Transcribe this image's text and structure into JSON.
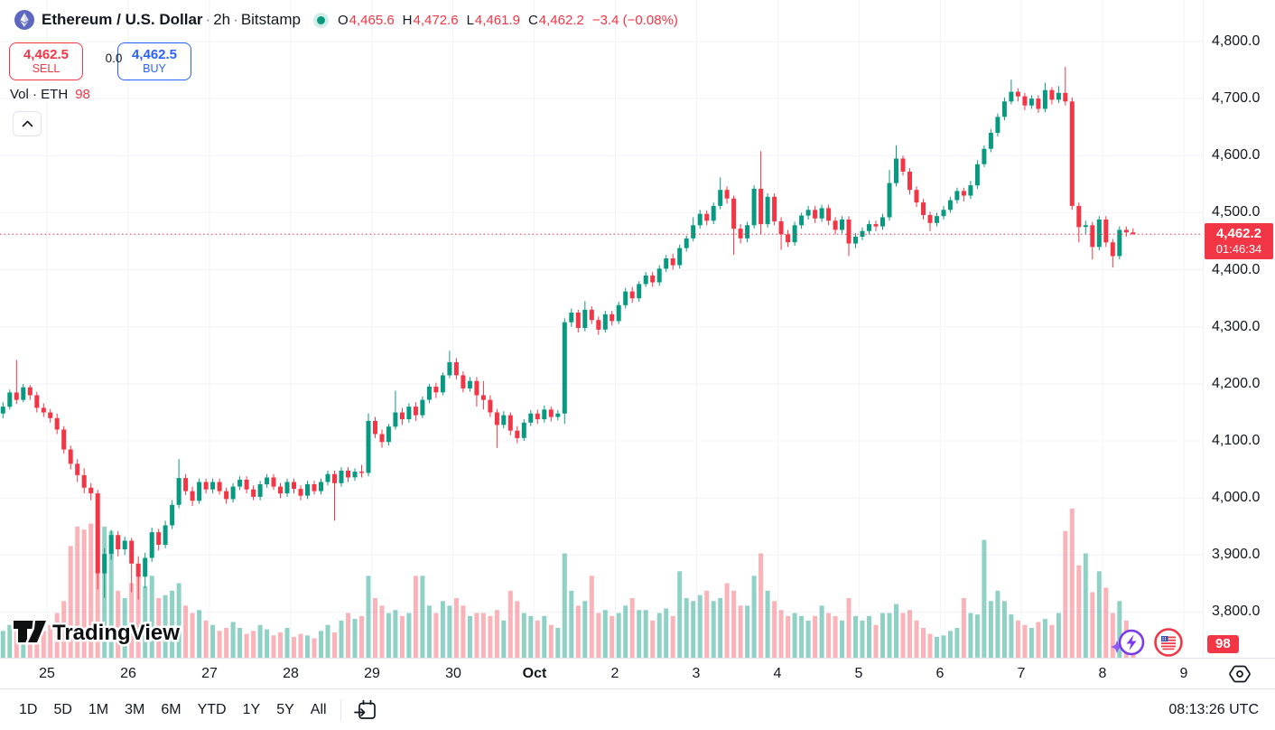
{
  "header": {
    "symbol_title": "Ethereum / U.S. Dollar",
    "separator": "·",
    "interval": "2h",
    "exchange": "Bitstamp",
    "ohlc": {
      "o_label": "O",
      "o": "4,465.6",
      "h_label": "H",
      "h": "4,472.6",
      "l_label": "L",
      "l": "4,461.9",
      "c_label": "C",
      "c": "4,462.2",
      "change": "−3.4 (−0.08%)"
    }
  },
  "trade_panel": {
    "sell_price": "4,462.5",
    "sell_label": "SELL",
    "spread": "0.0",
    "buy_price": "4,462.5",
    "buy_label": "BUY"
  },
  "legend": {
    "volume_label": "Vol · ETH",
    "volume_value": "98"
  },
  "price_scale": {
    "last_price_label": "4,462.2",
    "countdown": "01:46:34",
    "volume_badge": "98"
  },
  "toolbar": {
    "ranges": [
      "1D",
      "5D",
      "1M",
      "3M",
      "6M",
      "YTD",
      "1Y",
      "5Y",
      "All"
    ],
    "timezone": "08:13:26 UTC"
  },
  "watermark": "TradingView",
  "colors": {
    "up": "#089981",
    "down": "#F23645",
    "vol_up": "rgba(8,153,129,0.45)",
    "vol_down": "rgba(242,54,69,0.38)",
    "grid": "#f0f3fa",
    "accent_red": "#F23645",
    "accent_blue": "#2962FF",
    "text": "#131722"
  },
  "chart_data": {
    "type": "candlestick+volume",
    "title": "Ethereum / U.S. Dollar · 2h · Bitstamp",
    "interval": "2h",
    "last_price": 4462.2,
    "ylim": [
      3720,
      4873
    ],
    "grid": true,
    "price_axis_ticks": [
      {
        "label": "4,800.0",
        "value": 4800
      },
      {
        "label": "4,700.0",
        "value": 4700
      },
      {
        "label": "4,600.0",
        "value": 4600
      },
      {
        "label": "4,500.0",
        "value": 4500
      },
      {
        "label": "4,400.0",
        "value": 4400
      },
      {
        "label": "4,300.0",
        "value": 4300
      },
      {
        "label": "4,200.0",
        "value": 4200
      },
      {
        "label": "4,100.0",
        "value": 4100
      },
      {
        "label": "4,000.0",
        "value": 4000
      },
      {
        "label": "3,900.0",
        "value": 3900
      },
      {
        "label": "3,800.0",
        "value": 3800
      }
    ],
    "time_axis_ticks": [
      {
        "label": "25",
        "i": 7
      },
      {
        "label": "26",
        "i": 19
      },
      {
        "label": "27",
        "i": 31
      },
      {
        "label": "28",
        "i": 43
      },
      {
        "label": "29",
        "i": 55
      },
      {
        "label": "30",
        "i": 67
      },
      {
        "label": "Oct",
        "i": 79,
        "bold": true
      },
      {
        "label": "2",
        "i": 91
      },
      {
        "label": "3",
        "i": 103
      },
      {
        "label": "4",
        "i": 115
      },
      {
        "label": "5",
        "i": 127
      },
      {
        "label": "6",
        "i": 139
      },
      {
        "label": "7",
        "i": 151
      },
      {
        "label": "8",
        "i": 163
      },
      {
        "label": "9",
        "i": 175
      }
    ],
    "volume_units": "relative 0-100 (current candle = 98 ETH)",
    "candles": [
      [
        4148,
        4168,
        4140,
        4160,
        18
      ],
      [
        4160,
        4190,
        4155,
        4185,
        22
      ],
      [
        4185,
        4242,
        4165,
        4172,
        20
      ],
      [
        4172,
        4200,
        4168,
        4194,
        16
      ],
      [
        4194,
        4198,
        4172,
        4180,
        15
      ],
      [
        4180,
        4186,
        4150,
        4158,
        20
      ],
      [
        4158,
        4166,
        4142,
        4150,
        18
      ],
      [
        4150,
        4156,
        4132,
        4140,
        22
      ],
      [
        4140,
        4148,
        4112,
        4120,
        30
      ],
      [
        4120,
        4126,
        4078,
        4085,
        38
      ],
      [
        4085,
        4092,
        4050,
        4060,
        75
      ],
      [
        4060,
        4068,
        4028,
        4040,
        88
      ],
      [
        4040,
        4052,
        4008,
        4018,
        86
      ],
      [
        4018,
        4026,
        3996,
        4008,
        90
      ],
      [
        4008,
        4014,
        3840,
        3868,
        92
      ],
      [
        3868,
        3912,
        3825,
        3902,
        88
      ],
      [
        3902,
        3944,
        3892,
        3935,
        85
      ],
      [
        3935,
        3942,
        3898,
        3910,
        45
      ],
      [
        3910,
        3932,
        3900,
        3925,
        40
      ],
      [
        3925,
        3930,
        3835,
        3885,
        50
      ],
      [
        3885,
        3898,
        3822,
        3862,
        55
      ],
      [
        3862,
        3904,
        3842,
        3895,
        48
      ],
      [
        3895,
        3948,
        3888,
        3940,
        55
      ],
      [
        3940,
        3946,
        3908,
        3918,
        40
      ],
      [
        3918,
        3960,
        3912,
        3952,
        42
      ],
      [
        3952,
        3996,
        3946,
        3988,
        45
      ],
      [
        3988,
        4068,
        3982,
        4035,
        50
      ],
      [
        4035,
        4042,
        4005,
        4012,
        35
      ],
      [
        4012,
        4020,
        3986,
        3995,
        30
      ],
      [
        3995,
        4034,
        3990,
        4028,
        32
      ],
      [
        4028,
        4034,
        4008,
        4015,
        25
      ],
      [
        4015,
        4034,
        4008,
        4028,
        22
      ],
      [
        4028,
        4034,
        4006,
        4012,
        18
      ],
      [
        4012,
        4018,
        3990,
        3998,
        20
      ],
      [
        3998,
        4026,
        3992,
        4020,
        24
      ],
      [
        4020,
        4038,
        4014,
        4032,
        20
      ],
      [
        4032,
        4038,
        4008,
        4015,
        16
      ],
      [
        4015,
        4022,
        3996,
        4002,
        18
      ],
      [
        4002,
        4030,
        3996,
        4024,
        22
      ],
      [
        4024,
        4042,
        4018,
        4036,
        19
      ],
      [
        4036,
        4042,
        4014,
        4020,
        15
      ],
      [
        4020,
        4026,
        4000,
        4008,
        17
      ],
      [
        4008,
        4034,
        4002,
        4028,
        20
      ],
      [
        4028,
        4034,
        4008,
        4016,
        14
      ],
      [
        4016,
        4022,
        3996,
        4004,
        16
      ],
      [
        4004,
        4030,
        3998,
        4024,
        15
      ],
      [
        4024,
        4030,
        4006,
        4012,
        13
      ],
      [
        4012,
        4034,
        4006,
        4028,
        18
      ],
      [
        4028,
        4048,
        4022,
        4042,
        22
      ],
      [
        4042,
        4048,
        3960,
        4026,
        17
      ],
      [
        4026,
        4054,
        4020,
        4048,
        25
      ],
      [
        4048,
        4054,
        4028,
        4036,
        30
      ],
      [
        4036,
        4052,
        4030,
        4046,
        26
      ],
      [
        4046,
        4058,
        4036,
        4044,
        28
      ],
      [
        4044,
        4148,
        4038,
        4135,
        55
      ],
      [
        4135,
        4142,
        4105,
        4112,
        40
      ],
      [
        4112,
        4120,
        4088,
        4098,
        35
      ],
      [
        4098,
        4130,
        4092,
        4125,
        30
      ],
      [
        4125,
        4188,
        4120,
        4150,
        32
      ],
      [
        4150,
        4158,
        4128,
        4138,
        28
      ],
      [
        4138,
        4166,
        4132,
        4160,
        30
      ],
      [
        4160,
        4168,
        4135,
        4145,
        55
      ],
      [
        4145,
        4178,
        4140,
        4172,
        55
      ],
      [
        4172,
        4200,
        4166,
        4195,
        35
      ],
      [
        4195,
        4202,
        4175,
        4185,
        30
      ],
      [
        4185,
        4220,
        4180,
        4215,
        38
      ],
      [
        4215,
        4258,
        4210,
        4238,
        35
      ],
      [
        4238,
        4245,
        4208,
        4215,
        40
      ],
      [
        4215,
        4222,
        4185,
        4192,
        35
      ],
      [
        4192,
        4212,
        4186,
        4205,
        28
      ],
      [
        4205,
        4212,
        4160,
        4180,
        30
      ],
      [
        4180,
        4205,
        4155,
        4172,
        30
      ],
      [
        4172,
        4180,
        4142,
        4150,
        28
      ],
      [
        4150,
        4156,
        4088,
        4128,
        32
      ],
      [
        4128,
        4152,
        4122,
        4145,
        25
      ],
      [
        4145,
        4150,
        4110,
        4118,
        45
      ],
      [
        4118,
        4126,
        4096,
        4105,
        38
      ],
      [
        4105,
        4138,
        4100,
        4132,
        30
      ],
      [
        4132,
        4154,
        4126,
        4148,
        28
      ],
      [
        4148,
        4155,
        4130,
        4138,
        25
      ],
      [
        4138,
        4162,
        4132,
        4155,
        28
      ],
      [
        4155,
        4160,
        4134,
        4142,
        22
      ],
      [
        4142,
        4154,
        4136,
        4148,
        20
      ],
      [
        4148,
        4315,
        4130,
        4308,
        70
      ],
      [
        4308,
        4332,
        4300,
        4325,
        45
      ],
      [
        4325,
        4330,
        4290,
        4298,
        35
      ],
      [
        4298,
        4345,
        4292,
        4330,
        38
      ],
      [
        4330,
        4336,
        4305,
        4312,
        55
      ],
      [
        4312,
        4318,
        4286,
        4295,
        30
      ],
      [
        4295,
        4328,
        4290,
        4322,
        32
      ],
      [
        4322,
        4328,
        4302,
        4310,
        28
      ],
      [
        4310,
        4344,
        4305,
        4338,
        30
      ],
      [
        4338,
        4368,
        4332,
        4362,
        35
      ],
      [
        4362,
        4370,
        4342,
        4350,
        40
      ],
      [
        4350,
        4380,
        4344,
        4375,
        32
      ],
      [
        4375,
        4396,
        4370,
        4390,
        32
      ],
      [
        4390,
        4396,
        4370,
        4378,
        25
      ],
      [
        4378,
        4408,
        4372,
        4402,
        30
      ],
      [
        4402,
        4426,
        4396,
        4420,
        33
      ],
      [
        4420,
        4428,
        4400,
        4408,
        28
      ],
      [
        4408,
        4444,
        4402,
        4438,
        58
      ],
      [
        4438,
        4460,
        4432,
        4455,
        40
      ],
      [
        4455,
        4492,
        4450,
        4478,
        38
      ],
      [
        4478,
        4505,
        4472,
        4498,
        42
      ],
      [
        4498,
        4504,
        4478,
        4486,
        45
      ],
      [
        4486,
        4518,
        4480,
        4512,
        38
      ],
      [
        4512,
        4562,
        4506,
        4540,
        40
      ],
      [
        4540,
        4546,
        4516,
        4525,
        50
      ],
      [
        4525,
        4530,
        4426,
        4472,
        45
      ],
      [
        4472,
        4480,
        4446,
        4455,
        35
      ],
      [
        4455,
        4484,
        4448,
        4478,
        35
      ],
      [
        4478,
        4548,
        4472,
        4542,
        55
      ],
      [
        4542,
        4608,
        4462,
        4480,
        70
      ],
      [
        4480,
        4534,
        4474,
        4528,
        45
      ],
      [
        4528,
        4534,
        4478,
        4485,
        38
      ],
      [
        4485,
        4492,
        4435,
        4462,
        32
      ],
      [
        4462,
        4470,
        4440,
        4448,
        28
      ],
      [
        4448,
        4484,
        4442,
        4478,
        30
      ],
      [
        4478,
        4500,
        4472,
        4495,
        28
      ],
      [
        4495,
        4512,
        4488,
        4505,
        25
      ],
      [
        4505,
        4512,
        4482,
        4490,
        28
      ],
      [
        4490,
        4514,
        4484,
        4508,
        35
      ],
      [
        4508,
        4514,
        4478,
        4486,
        30
      ],
      [
        4486,
        4492,
        4462,
        4470,
        28
      ],
      [
        4470,
        4494,
        4464,
        4488,
        25
      ],
      [
        4488,
        4494,
        4424,
        4446,
        40
      ],
      [
        4446,
        4464,
        4438,
        4458,
        28
      ],
      [
        4458,
        4474,
        4452,
        4468,
        25
      ],
      [
        4468,
        4486,
        4462,
        4480,
        28
      ],
      [
        4480,
        4486,
        4468,
        4476,
        22
      ],
      [
        4476,
        4498,
        4470,
        4492,
        30
      ],
      [
        4492,
        4575,
        4486,
        4552,
        30
      ],
      [
        4552,
        4618,
        4546,
        4595,
        36
      ],
      [
        4595,
        4600,
        4565,
        4572,
        30
      ],
      [
        4572,
        4578,
        4532,
        4540,
        32
      ],
      [
        4540,
        4546,
        4510,
        4518,
        25
      ],
      [
        4518,
        4524,
        4488,
        4496,
        20
      ],
      [
        4496,
        4502,
        4468,
        4482,
        16
      ],
      [
        4482,
        4500,
        4476,
        4494,
        14
      ],
      [
        4494,
        4512,
        4488,
        4505,
        15
      ],
      [
        4505,
        4528,
        4500,
        4522,
        18
      ],
      [
        4522,
        4544,
        4516,
        4538,
        20
      ],
      [
        4538,
        4544,
        4520,
        4530,
        40
      ],
      [
        4530,
        4556,
        4524,
        4548,
        30
      ],
      [
        4548,
        4592,
        4542,
        4585,
        29
      ],
      [
        4585,
        4618,
        4580,
        4612,
        79
      ],
      [
        4612,
        4646,
        4606,
        4640,
        38
      ],
      [
        4640,
        4674,
        4634,
        4668,
        45
      ],
      [
        4668,
        4702,
        4662,
        4695,
        38
      ],
      [
        4695,
        4733,
        4690,
        4712,
        29
      ],
      [
        4712,
        4718,
        4695,
        4704,
        25
      ],
      [
        4704,
        4710,
        4680,
        4688,
        22
      ],
      [
        4688,
        4706,
        4682,
        4700,
        20
      ],
      [
        4700,
        4706,
        4675,
        4682,
        24
      ],
      [
        4682,
        4728,
        4676,
        4715,
        26
      ],
      [
        4715,
        4720,
        4690,
        4698,
        22
      ],
      [
        4698,
        4722,
        4692,
        4710,
        30
      ],
      [
        4710,
        4756,
        4688,
        4695,
        85
      ],
      [
        4695,
        4702,
        4505,
        4512,
        100
      ],
      [
        4512,
        4518,
        4448,
        4475,
        62
      ],
      [
        4475,
        4486,
        4462,
        4478,
        70
      ],
      [
        4478,
        4484,
        4418,
        4440,
        44
      ],
      [
        4440,
        4494,
        4434,
        4488,
        58
      ],
      [
        4488,
        4494,
        4440,
        4448,
        47
      ],
      [
        4448,
        4454,
        4404,
        4424,
        30
      ],
      [
        4424,
        4476,
        4418,
        4470,
        38
      ],
      [
        4470,
        4476,
        4458,
        4465.6,
        25
      ],
      [
        4465.6,
        4472.6,
        4461.9,
        4462.2,
        10
      ]
    ]
  }
}
